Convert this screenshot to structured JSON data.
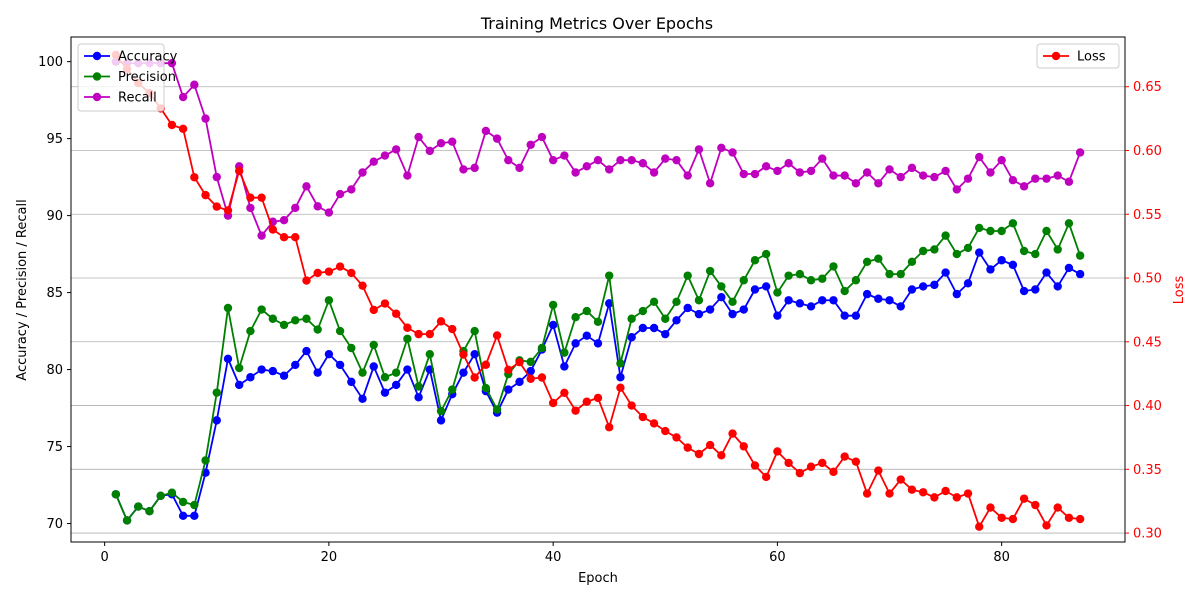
{
  "chart_data": {
    "type": "line",
    "title": "Training Metrics Over Epochs",
    "xlabel": "Epoch",
    "ylabel_left": "Accuracy / Precision / Recall",
    "ylabel_right": "Loss",
    "xlim": [
      -3,
      91
    ],
    "ylim_left": [
      68.8,
      101.6
    ],
    "ylim_right": [
      0.293,
      0.689
    ],
    "x_ticks": [
      0,
      20,
      40,
      60,
      80
    ],
    "y_left_ticks": [
      70,
      75,
      80,
      85,
      90,
      95,
      100
    ],
    "y_right_ticks": [
      0.3,
      0.35,
      0.4,
      0.45,
      0.5,
      0.55,
      0.6,
      0.65
    ],
    "y_right_tick_labels": [
      "0.30",
      "0.35",
      "0.40",
      "0.45",
      "0.50",
      "0.55",
      "0.60",
      "0.65"
    ],
    "grid": "horizontal lines at right-axis ticks",
    "legend_left_placement": "top-left",
    "legend_right_placement": "top-right",
    "right_axis_color": "#ff0000",
    "epochs": [
      1,
      2,
      3,
      4,
      5,
      6,
      7,
      8,
      9,
      10,
      11,
      12,
      13,
      14,
      15,
      16,
      17,
      18,
      19,
      20,
      21,
      22,
      23,
      24,
      25,
      26,
      27,
      28,
      29,
      30,
      31,
      32,
      33,
      34,
      35,
      36,
      37,
      38,
      39,
      40,
      41,
      42,
      43,
      44,
      45,
      46,
      47,
      48,
      49,
      50,
      51,
      52,
      53,
      54,
      55,
      56,
      57,
      58,
      59,
      60,
      61,
      62,
      63,
      64,
      65,
      66,
      67,
      68,
      69,
      70,
      71,
      72,
      73,
      74,
      75,
      76,
      77,
      78,
      79,
      80,
      81,
      82,
      83,
      84,
      85,
      86,
      87
    ],
    "series_left": [
      {
        "name": "Accuracy",
        "color": "#0000ff",
        "values": [
          71.9,
          70.2,
          71.1,
          70.8,
          71.8,
          71.9,
          70.5,
          70.5,
          73.3,
          76.7,
          80.7,
          79.0,
          79.5,
          80.0,
          79.9,
          79.6,
          80.3,
          81.2,
          79.8,
          81.0,
          80.3,
          79.2,
          78.1,
          80.2,
          78.5,
          79.0,
          80.0,
          78.2,
          80.0,
          76.7,
          78.4,
          79.8,
          81.0,
          78.6,
          77.2,
          78.7,
          79.2,
          79.9,
          81.3,
          82.9,
          80.2,
          81.7,
          82.2,
          81.7,
          84.3,
          79.5,
          82.1,
          82.7,
          82.7,
          82.3,
          83.2,
          84.0,
          83.6,
          83.9,
          84.7,
          83.6,
          83.9,
          85.2,
          85.4,
          83.5,
          84.5,
          84.3,
          84.1,
          84.5,
          84.5,
          83.5,
          83.5,
          84.9,
          84.6,
          84.5,
          84.1,
          85.2,
          85.4,
          85.5,
          86.3,
          84.9,
          85.6,
          87.6,
          86.5,
          87.1,
          86.8,
          85.1,
          85.2,
          86.3,
          85.4,
          86.6,
          86.2
        ]
      },
      {
        "name": "Precision",
        "color": "#008000",
        "values": [
          71.9,
          70.2,
          71.1,
          70.8,
          71.8,
          72.0,
          71.4,
          71.2,
          74.1,
          78.5,
          84.0,
          80.1,
          82.5,
          83.9,
          83.3,
          82.9,
          83.2,
          83.3,
          82.6,
          84.5,
          82.5,
          81.4,
          79.8,
          81.6,
          79.5,
          79.8,
          82.0,
          78.9,
          81.0,
          77.3,
          78.7,
          81.2,
          82.5,
          78.8,
          77.4,
          79.7,
          80.6,
          80.5,
          81.4,
          84.2,
          81.1,
          83.4,
          83.8,
          83.1,
          86.1,
          80.4,
          83.3,
          83.8,
          84.4,
          83.3,
          84.4,
          86.1,
          84.5,
          86.4,
          85.4,
          84.4,
          85.8,
          87.1,
          87.5,
          85.0,
          86.1,
          86.2,
          85.8,
          85.9,
          86.7,
          85.1,
          85.8,
          87.0,
          87.2,
          86.2,
          86.2,
          87.0,
          87.7,
          87.8,
          88.7,
          87.5,
          87.9,
          89.2,
          89.0,
          89.0,
          89.5,
          87.7,
          87.5,
          89.0,
          87.8,
          89.5,
          87.4
        ]
      },
      {
        "name": "Recall",
        "color": "#bf00bf",
        "values": [
          100.0,
          99.9,
          99.9,
          99.9,
          99.9,
          99.9,
          97.7,
          98.5,
          96.3,
          92.5,
          90.0,
          93.2,
          90.5,
          88.7,
          89.6,
          89.7,
          90.5,
          91.9,
          90.6,
          90.2,
          91.4,
          91.7,
          92.8,
          93.5,
          93.9,
          94.3,
          92.6,
          95.1,
          94.2,
          94.7,
          94.8,
          93.0,
          93.1,
          95.5,
          95.0,
          93.6,
          93.1,
          94.6,
          95.1,
          93.6,
          93.9,
          92.8,
          93.2,
          93.6,
          93.0,
          93.6,
          93.6,
          93.4,
          92.8,
          93.7,
          93.6,
          92.6,
          94.3,
          92.1,
          94.4,
          94.1,
          92.7,
          92.7,
          93.2,
          92.9,
          93.4,
          92.8,
          92.9,
          93.7,
          92.6,
          92.6,
          92.1,
          92.8,
          92.1,
          93.0,
          92.5,
          93.1,
          92.6,
          92.5,
          92.9,
          91.7,
          92.4,
          93.8,
          92.8,
          93.6,
          92.3,
          91.9,
          92.4,
          92.4,
          92.6,
          92.2,
          94.1
        ]
      }
    ],
    "series_right": [
      {
        "name": "Loss",
        "color": "#ff0000",
        "values": [
          0.675,
          0.664,
          0.653,
          0.645,
          0.633,
          0.62,
          0.617,
          0.579,
          0.565,
          0.556,
          0.553,
          0.584,
          0.563,
          0.563,
          0.538,
          0.532,
          0.532,
          0.498,
          0.504,
          0.505,
          0.509,
          0.504,
          0.494,
          0.475,
          0.48,
          0.472,
          0.461,
          0.456,
          0.456,
          0.466,
          0.46,
          0.44,
          0.422,
          0.432,
          0.455,
          0.428,
          0.434,
          0.421,
          0.422,
          0.402,
          0.41,
          0.396,
          0.403,
          0.406,
          0.383,
          0.414,
          0.4,
          0.391,
          0.386,
          0.38,
          0.375,
          0.367,
          0.362,
          0.369,
          0.361,
          0.378,
          0.368,
          0.353,
          0.344,
          0.364,
          0.355,
          0.347,
          0.352,
          0.355,
          0.348,
          0.36,
          0.356,
          0.331,
          0.349,
          0.331,
          0.342,
          0.334,
          0.332,
          0.328,
          0.333,
          0.328,
          0.331,
          0.305,
          0.32,
          0.312,
          0.311,
          0.327,
          0.322,
          0.306,
          0.32,
          0.312,
          0.311
        ]
      }
    ]
  }
}
